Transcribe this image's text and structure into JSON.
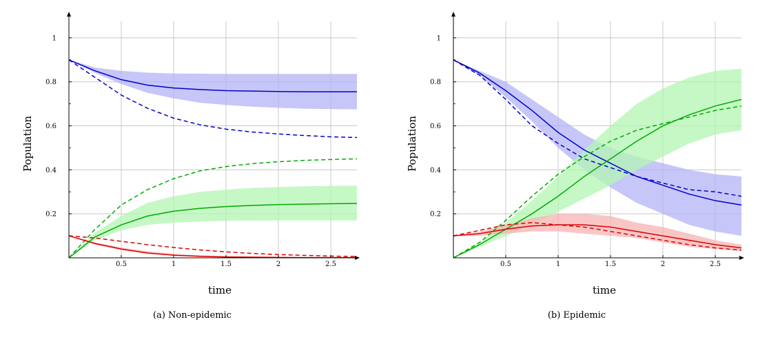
{
  "figure": {
    "panels": [
      {
        "caption": "(a)  Non-epidemic"
      },
      {
        "caption": "(b)  Epidemic"
      }
    ]
  },
  "chart_data": [
    {
      "type": "line",
      "caption": "(a)  Non-epidemic",
      "xlabel": "time",
      "ylabel": "Population",
      "xlim": [
        0,
        2.75
      ],
      "ylim": [
        0,
        1.1
      ],
      "xticks": [
        0.5,
        1,
        1.5,
        2,
        2.5
      ],
      "xtick_labels": [
        "0.5",
        "1",
        "1.5",
        "2",
        "2.5"
      ],
      "yticks": [
        0.2,
        0.4,
        0.6,
        0.8,
        1
      ],
      "ytick_labels": [
        "0.2",
        "0.4",
        "0.6",
        "0.8",
        "1"
      ],
      "grid": true,
      "legend": "none",
      "x": [
        0,
        0.25,
        0.5,
        0.75,
        1,
        1.25,
        1.5,
        1.75,
        2,
        2.25,
        2.5,
        2.75
      ],
      "series": [
        {
          "color": "#0000cc",
          "style": "solid",
          "values": [
            0.9,
            0.85,
            0.81,
            0.785,
            0.772,
            0.765,
            0.76,
            0.758,
            0.756,
            0.755,
            0.755,
            0.755
          ],
          "band_lower": [
            0.9,
            0.84,
            0.79,
            0.75,
            0.725,
            0.705,
            0.695,
            0.687,
            0.682,
            0.678,
            0.676,
            0.675
          ],
          "band_upper": [
            0.9,
            0.865,
            0.85,
            0.842,
            0.838,
            0.837,
            0.836,
            0.836,
            0.836,
            0.836,
            0.836,
            0.836
          ],
          "band_color": "#b3b3f7"
        },
        {
          "color": "#0000cc",
          "style": "dashed",
          "values": [
            0.9,
            0.82,
            0.74,
            0.68,
            0.635,
            0.605,
            0.585,
            0.572,
            0.563,
            0.556,
            0.55,
            0.547
          ]
        },
        {
          "color": "#00aa00",
          "style": "solid",
          "values": [
            0.0,
            0.095,
            0.15,
            0.19,
            0.212,
            0.225,
            0.233,
            0.238,
            0.242,
            0.244,
            0.246,
            0.247
          ],
          "band_lower": [
            0.0,
            0.08,
            0.125,
            0.15,
            0.16,
            0.165,
            0.168,
            0.169,
            0.17,
            0.17,
            0.17,
            0.17
          ],
          "band_upper": [
            0.0,
            0.115,
            0.19,
            0.25,
            0.28,
            0.3,
            0.31,
            0.318,
            0.322,
            0.325,
            0.327,
            0.328
          ],
          "band_color": "#b3f5b3"
        },
        {
          "color": "#00aa00",
          "style": "dashed",
          "values": [
            0.0,
            0.13,
            0.24,
            0.31,
            0.36,
            0.395,
            0.415,
            0.428,
            0.437,
            0.443,
            0.447,
            0.45
          ]
        },
        {
          "color": "#dd0000",
          "style": "solid",
          "values": [
            0.1,
            0.065,
            0.04,
            0.022,
            0.012,
            0.007,
            0.004,
            0.003,
            0.002,
            0.001,
            0.001,
            0.001
          ],
          "band_lower": [
            0.1,
            0.06,
            0.035,
            0.018,
            0.009,
            0.004,
            0.002,
            0.001,
            0.001,
            0.0,
            0.0,
            0.0
          ],
          "band_upper": [
            0.1,
            0.07,
            0.047,
            0.03,
            0.018,
            0.011,
            0.007,
            0.005,
            0.003,
            0.002,
            0.002,
            0.002
          ],
          "band_color": "#f7b3b3"
        },
        {
          "color": "#dd0000",
          "style": "dashed",
          "values": [
            0.1,
            0.09,
            0.075,
            0.06,
            0.047,
            0.036,
            0.027,
            0.02,
            0.015,
            0.011,
            0.008,
            0.006
          ]
        }
      ]
    },
    {
      "type": "line",
      "caption": "(b)  Epidemic",
      "xlabel": "time",
      "ylabel": "Population",
      "xlim": [
        0,
        2.75
      ],
      "ylim": [
        0,
        1.1
      ],
      "xticks": [
        0.5,
        1,
        1.5,
        2,
        2.5
      ],
      "xtick_labels": [
        "0.5",
        "1",
        "1.5",
        "2",
        "2.5"
      ],
      "yticks": [
        0.2,
        0.4,
        0.6,
        0.8,
        1
      ],
      "ytick_labels": [
        "0.2",
        "0.4",
        "0.6",
        "0.8",
        "1"
      ],
      "grid": true,
      "legend": "none",
      "x": [
        0,
        0.25,
        0.5,
        0.75,
        1,
        1.25,
        1.5,
        1.75,
        2,
        2.25,
        2.5,
        2.75
      ],
      "series": [
        {
          "color": "#0000cc",
          "style": "solid",
          "values": [
            0.9,
            0.84,
            0.76,
            0.67,
            0.57,
            0.49,
            0.43,
            0.37,
            0.33,
            0.29,
            0.26,
            0.24
          ],
          "band_lower": [
            0.9,
            0.83,
            0.73,
            0.62,
            0.5,
            0.4,
            0.32,
            0.25,
            0.2,
            0.15,
            0.12,
            0.1
          ],
          "band_upper": [
            0.9,
            0.85,
            0.8,
            0.72,
            0.64,
            0.56,
            0.5,
            0.46,
            0.43,
            0.4,
            0.38,
            0.37
          ],
          "band_color": "#b3b3f7"
        },
        {
          "color": "#0000cc",
          "style": "dashed",
          "values": [
            0.9,
            0.83,
            0.72,
            0.6,
            0.52,
            0.45,
            0.41,
            0.37,
            0.34,
            0.31,
            0.3,
            0.28
          ]
        },
        {
          "color": "#00aa00",
          "style": "solid",
          "values": [
            0.0,
            0.06,
            0.13,
            0.2,
            0.28,
            0.37,
            0.45,
            0.53,
            0.6,
            0.65,
            0.69,
            0.72
          ],
          "band_lower": [
            0.0,
            0.05,
            0.1,
            0.15,
            0.21,
            0.27,
            0.33,
            0.4,
            0.46,
            0.52,
            0.56,
            0.58
          ],
          "band_upper": [
            0.0,
            0.07,
            0.16,
            0.26,
            0.37,
            0.49,
            0.6,
            0.7,
            0.77,
            0.82,
            0.85,
            0.86
          ],
          "band_color": "#b3f5b3"
        },
        {
          "color": "#00aa00",
          "style": "dashed",
          "values": [
            0.0,
            0.07,
            0.17,
            0.28,
            0.38,
            0.46,
            0.53,
            0.58,
            0.61,
            0.64,
            0.67,
            0.69
          ]
        },
        {
          "color": "#dd0000",
          "style": "solid",
          "values": [
            0.1,
            0.11,
            0.13,
            0.145,
            0.15,
            0.15,
            0.14,
            0.12,
            0.1,
            0.08,
            0.06,
            0.045
          ],
          "band_lower": [
            0.1,
            0.1,
            0.11,
            0.12,
            0.12,
            0.11,
            0.1,
            0.09,
            0.07,
            0.05,
            0.04,
            0.03
          ],
          "band_upper": [
            0.1,
            0.12,
            0.15,
            0.18,
            0.2,
            0.2,
            0.19,
            0.16,
            0.14,
            0.11,
            0.08,
            0.06
          ],
          "band_color": "#f7b3b3"
        },
        {
          "color": "#dd0000",
          "style": "dashed",
          "values": [
            0.1,
            0.125,
            0.15,
            0.16,
            0.15,
            0.14,
            0.12,
            0.1,
            0.08,
            0.06,
            0.045,
            0.035
          ]
        }
      ]
    }
  ]
}
